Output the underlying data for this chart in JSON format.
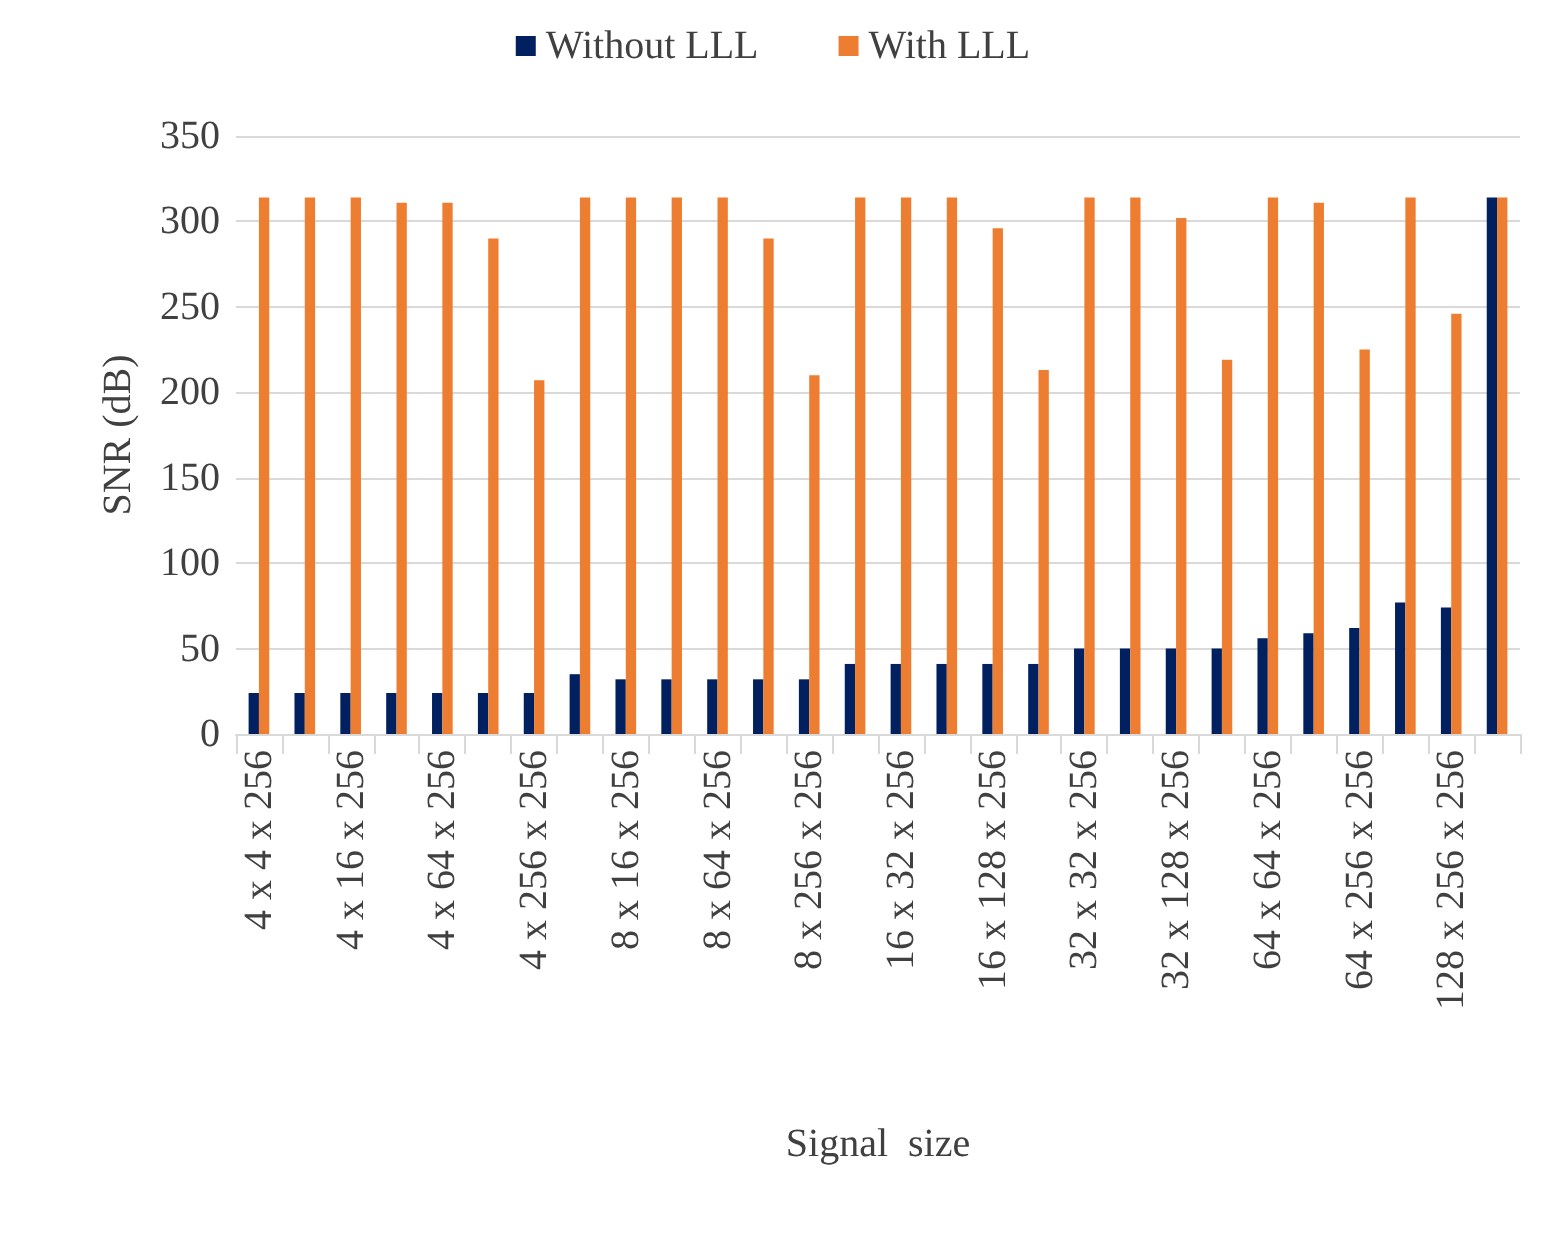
{
  "chart_data": {
    "type": "bar",
    "xlabel": "Signal  size",
    "ylabel": "SNR (dB)",
    "categories": [
      "4 x 4 x 256",
      null,
      "4 x 16 x 256",
      null,
      "4 x 64 x 256",
      null,
      "4 x 256 x 256",
      null,
      "8 x 16 x 256",
      null,
      "8 x 64 x 256",
      null,
      "8 x 256 x 256",
      null,
      "16 x 32 x 256",
      null,
      "16 x 128 x 256",
      null,
      "32 x 32 x 256",
      null,
      "32 x 128 x 256",
      null,
      "64 x 64 x 256",
      null,
      "64 x 256 x 256",
      null,
      "128 x 256 x 256",
      null
    ],
    "series": [
      {
        "name": "Without LLL",
        "color": "#002060",
        "values": [
          24,
          24,
          24,
          24,
          24,
          24,
          24,
          35,
          32,
          32,
          32,
          32,
          32,
          41,
          41,
          41,
          41,
          41,
          50,
          50,
          50,
          50,
          56,
          59,
          62,
          77,
          74,
          314
        ]
      },
      {
        "name": "With LLL",
        "color": "#ed7d31",
        "values": [
          314,
          314,
          314,
          311,
          311,
          290,
          207,
          314,
          314,
          314,
          314,
          290,
          210,
          314,
          314,
          314,
          296,
          213,
          314,
          314,
          302,
          219,
          314,
          311,
          225,
          314,
          246,
          314
        ]
      }
    ],
    "ylim": [
      0,
      350
    ],
    "yticks": [
      0,
      50,
      100,
      150,
      200,
      250,
      300,
      350
    ],
    "grid": "y",
    "legend": "top"
  }
}
